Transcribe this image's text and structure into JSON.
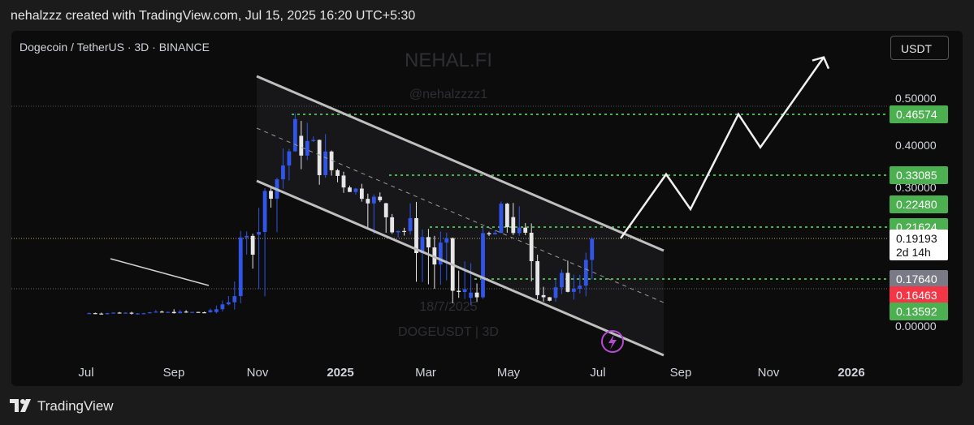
{
  "header": {
    "caption": "nehalzzz created with TradingView.com, Jul 15, 2025 16:20 UTC+5:30"
  },
  "footer": {
    "brand": "TradingView"
  },
  "toolbar": {
    "currency_button": "USDT"
  },
  "colors": {
    "bull": "#3155e6",
    "bear": "#e6e6e6",
    "channel": "#bfbfbf",
    "level": "#4caf50",
    "red_tag": "#f23645",
    "grey_tag": "#787b86",
    "accent": "#b54ad4"
  },
  "chart_data": {
    "type": "candlestick",
    "symbol": "Dogecoin / TetherUS · 3D · BINANCE",
    "watermark": {
      "name": "NEHAL.FI",
      "handle": "@nehalzzzz1",
      "date": "18/7/2025",
      "ticker": "DOGEUSDT | 3D"
    },
    "x_ticks": [
      "Jul",
      "Sep",
      "Nov",
      "2025",
      "Mar",
      "May",
      "Jul",
      "Sep",
      "Nov",
      "2026"
    ],
    "y_ticks": [
      "0.50000",
      "0.40000",
      "0.30000",
      "0.00000"
    ],
    "price_labels": [
      {
        "value": "0.46574",
        "kind": "green"
      },
      {
        "value": "0.33085",
        "kind": "green"
      },
      {
        "value": "0.22480",
        "kind": "green"
      },
      {
        "value": "0.21624",
        "kind": "green"
      },
      {
        "value": "0.19193",
        "kind": "last",
        "note": "2d 14h"
      },
      {
        "value": "0.17640",
        "kind": "grey"
      },
      {
        "value": "0.16463",
        "kind": "red"
      },
      {
        "value": "0.13592",
        "kind": "green"
      }
    ],
    "support_resistance": [
      0.46574,
      0.33085,
      0.21624,
      0.1764
    ],
    "projection": [
      0.192,
      0.333,
      0.223,
      0.466,
      0.395,
      0.58
    ],
    "segments": [
      {
        "from": "Jul 2024",
        "to": "Oct 2024",
        "start": 0.12,
        "end": 0.13,
        "vol": 0.006
      },
      {
        "from": "Oct 2024",
        "to": "Nov 2024",
        "start": 0.13,
        "end": 0.2,
        "vol": 0.01
      },
      {
        "from": "Nov 2024",
        "to": "Dec 2024",
        "start": 0.2,
        "end": 0.42,
        "vol": 0.03
      },
      {
        "from": "Dec 2024",
        "to": "Jan 2025",
        "start": 0.42,
        "end": 0.33,
        "vol": 0.03
      },
      {
        "from": "Jan 2025",
        "to": "Feb 2025",
        "start": 0.33,
        "end": 0.23,
        "vol": 0.02
      },
      {
        "from": "Feb 2025",
        "to": "Apr 2025",
        "start": 0.23,
        "end": 0.16,
        "vol": 0.012
      },
      {
        "from": "Apr 2025",
        "to": "May 2025",
        "start": 0.16,
        "end": 0.22,
        "vol": 0.012
      },
      {
        "from": "May 2025",
        "to": "Jun 2025",
        "start": 0.22,
        "end": 0.16,
        "vol": 0.01
      },
      {
        "from": "Jun 2025",
        "to": "Jul 2025",
        "start": 0.16,
        "end": 0.192,
        "vol": 0.008
      }
    ]
  }
}
